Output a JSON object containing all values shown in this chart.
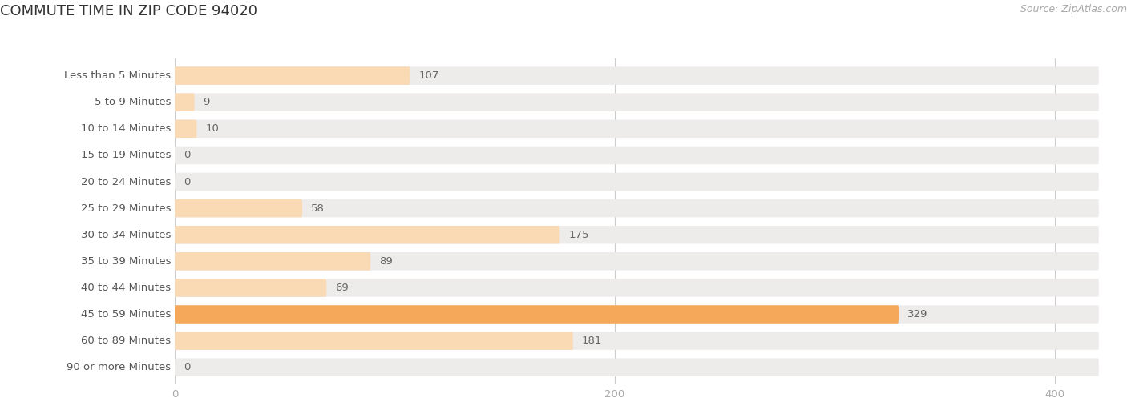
{
  "title": "COMMUTE TIME IN ZIP CODE 94020",
  "source_text": "Source: ZipAtlas.com",
  "categories": [
    "Less than 5 Minutes",
    "5 to 9 Minutes",
    "10 to 14 Minutes",
    "15 to 19 Minutes",
    "20 to 24 Minutes",
    "25 to 29 Minutes",
    "30 to 34 Minutes",
    "35 to 39 Minutes",
    "40 to 44 Minutes",
    "45 to 59 Minutes",
    "60 to 89 Minutes",
    "90 or more Minutes"
  ],
  "values": [
    107,
    9,
    10,
    0,
    0,
    58,
    175,
    89,
    69,
    329,
    181,
    0
  ],
  "max_val": 420,
  "xticks": [
    0,
    200,
    400
  ],
  "bar_color_light": "#fad9b5",
  "bar_color_dark": "#f5a85a",
  "bar_bg_color": "#eeebeb",
  "bar_bg_color2": "#e8e5e5",
  "background_color": "#ffffff",
  "title_fontsize": 13,
  "label_fontsize": 9.5,
  "value_fontsize": 9.5,
  "source_fontsize": 9,
  "tick_color": "#aaaaaa",
  "text_color": "#555555",
  "title_color": "#333333",
  "value_label_color": "#666666"
}
